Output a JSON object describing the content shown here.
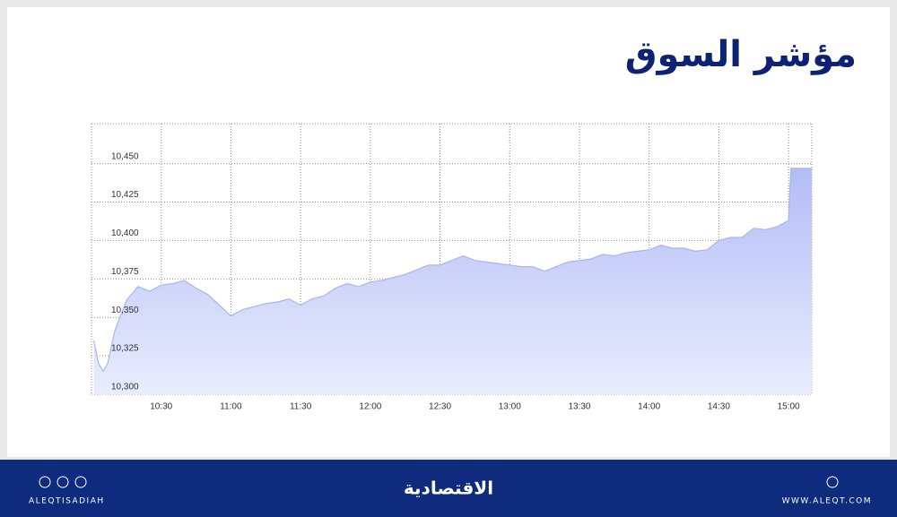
{
  "chart_data": {
    "type": "area",
    "title": "مؤشر السوق",
    "x": [
      "10:01",
      "10:03",
      "10:05",
      "10:07",
      "10:10",
      "10:15",
      "10:20",
      "10:25",
      "10:30",
      "10:35",
      "10:40",
      "10:45",
      "10:50",
      "10:55",
      "11:00",
      "11:05",
      "11:10",
      "11:15",
      "11:20",
      "11:25",
      "11:30",
      "11:35",
      "11:40",
      "11:45",
      "11:50",
      "11:55",
      "12:00",
      "12:05",
      "12:10",
      "12:15",
      "12:20",
      "12:25",
      "12:30",
      "12:35",
      "12:40",
      "12:45",
      "12:50",
      "12:55",
      "13:00",
      "13:05",
      "13:10",
      "13:15",
      "13:20",
      "13:25",
      "13:30",
      "13:35",
      "13:40",
      "13:45",
      "13:50",
      "13:55",
      "14:00",
      "14:05",
      "14:10",
      "14:15",
      "14:20",
      "14:25",
      "14:30",
      "14:35",
      "14:40",
      "14:45",
      "14:50",
      "14:55",
      "15:00",
      "15:01",
      "15:10"
    ],
    "values": [
      10335,
      10320,
      10315,
      10320,
      10341,
      10361,
      10370,
      10367,
      10371,
      10372,
      10374,
      10369,
      10365,
      10358,
      10351,
      10355,
      10357,
      10359,
      10360,
      10362,
      10358,
      10362,
      10364,
      10369,
      10372,
      10370,
      10373,
      10374,
      10376,
      10378,
      10381,
      10384,
      10384,
      10387,
      10390,
      10387,
      10386,
      10385,
      10384,
      10383,
      10383,
      10380,
      10383,
      10386,
      10387,
      10388,
      10391,
      10390,
      10392,
      10393,
      10394,
      10397,
      10395,
      10395,
      10393,
      10394,
      10400,
      10402,
      10402,
      10408,
      10407,
      10409,
      10413,
      10447,
      10447
    ],
    "color": "#aab5f2",
    "xlim": [
      "10:00",
      "15:10"
    ],
    "xticks": [
      "10:30",
      "11:00",
      "11:30",
      "12:00",
      "12:30",
      "13:00",
      "13:30",
      "14:00",
      "14:30",
      "15:00"
    ],
    "ylim": [
      10300,
      10476
    ],
    "yticks": [
      {
        "value": 10300,
        "label": "10,300"
      },
      {
        "value": 10325,
        "label": "10,325"
      },
      {
        "value": 10350,
        "label": "10,350"
      },
      {
        "value": 10375,
        "label": "10,375"
      },
      {
        "value": 10400,
        "label": "10,400"
      },
      {
        "value": 10425,
        "label": "10,425"
      },
      {
        "value": 10450,
        "label": "10,450"
      }
    ],
    "grid": true
  },
  "footer": {
    "handle": "ALEQTISADIAH",
    "logo": "الاقتصادية",
    "website": "WWW.ALEQT.COM"
  }
}
